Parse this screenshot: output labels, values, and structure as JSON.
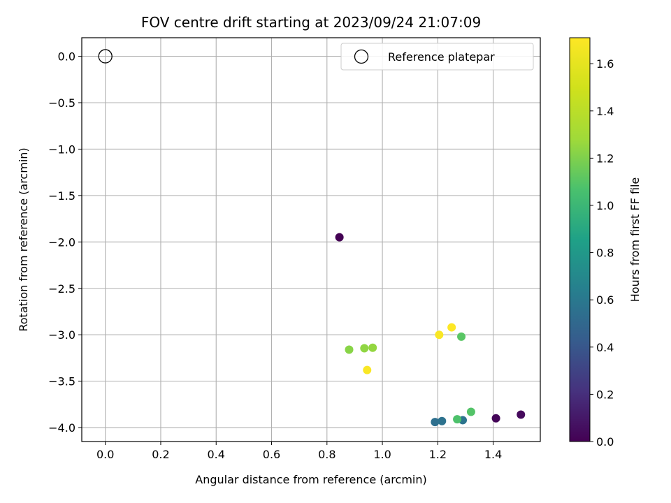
{
  "chart_data": {
    "type": "scatter",
    "title": "FOV centre drift starting at 2023/09/24 21:07:09",
    "xlabel": "Angular distance from reference (arcmin)",
    "ylabel": "Rotation from reference (arcmin)",
    "xlim": [
      -0.085,
      1.57
    ],
    "ylim": [
      -4.15,
      0.2
    ],
    "xticks": [
      0.0,
      0.2,
      0.4,
      0.6,
      0.8,
      1.0,
      1.2,
      1.4
    ],
    "xtick_labels": [
      "0.0",
      "0.2",
      "0.4",
      "0.6",
      "0.8",
      "1.0",
      "1.2",
      "1.4"
    ],
    "yticks": [
      0.0,
      -0.5,
      -1.0,
      -1.5,
      -2.0,
      -2.5,
      -3.0,
      -3.5,
      -4.0
    ],
    "ytick_labels": [
      "0.0",
      "−0.5",
      "−1.0",
      "−1.5",
      "−2.0",
      "−2.5",
      "−3.0",
      "−3.5",
      "−4.0"
    ],
    "grid": true,
    "legend": {
      "position": "top-right",
      "entries": [
        "Reference platepar"
      ]
    },
    "reference_point": {
      "x": 0.0,
      "y": 0.0,
      "label": "Reference platepar"
    },
    "colorbar": {
      "label": "Hours from first FF file",
      "colormap": "viridis",
      "range": [
        0.0,
        1.71
      ],
      "ticks": [
        0.0,
        0.2,
        0.4,
        0.6,
        0.8,
        1.0,
        1.2,
        1.4,
        1.6
      ],
      "tick_labels": [
        "0.0",
        "0.2",
        "0.4",
        "0.6",
        "0.8",
        "1.0",
        "1.2",
        "1.4",
        "1.6"
      ]
    },
    "points": [
      {
        "x": 0.845,
        "y": -1.95,
        "hours": 0.0
      },
      {
        "x": 1.41,
        "y": -3.9,
        "hours": 0.02
      },
      {
        "x": 1.5,
        "y": -3.86,
        "hours": 0.04
      },
      {
        "x": 1.19,
        "y": -3.94,
        "hours": 0.62
      },
      {
        "x": 1.215,
        "y": -3.93,
        "hours": 0.64
      },
      {
        "x": 1.29,
        "y": -3.92,
        "hours": 0.66
      },
      {
        "x": 1.27,
        "y": -3.91,
        "hours": 1.22
      },
      {
        "x": 1.32,
        "y": -3.83,
        "hours": 1.24
      },
      {
        "x": 1.285,
        "y": -3.02,
        "hours": 1.26
      },
      {
        "x": 0.88,
        "y": -3.16,
        "hours": 1.4
      },
      {
        "x": 0.935,
        "y": -3.145,
        "hours": 1.42
      },
      {
        "x": 0.965,
        "y": -3.14,
        "hours": 1.43
      },
      {
        "x": 0.945,
        "y": -3.38,
        "hours": 1.7
      },
      {
        "x": 1.205,
        "y": -3.0,
        "hours": 1.7
      },
      {
        "x": 1.25,
        "y": -2.92,
        "hours": 1.71
      }
    ]
  }
}
